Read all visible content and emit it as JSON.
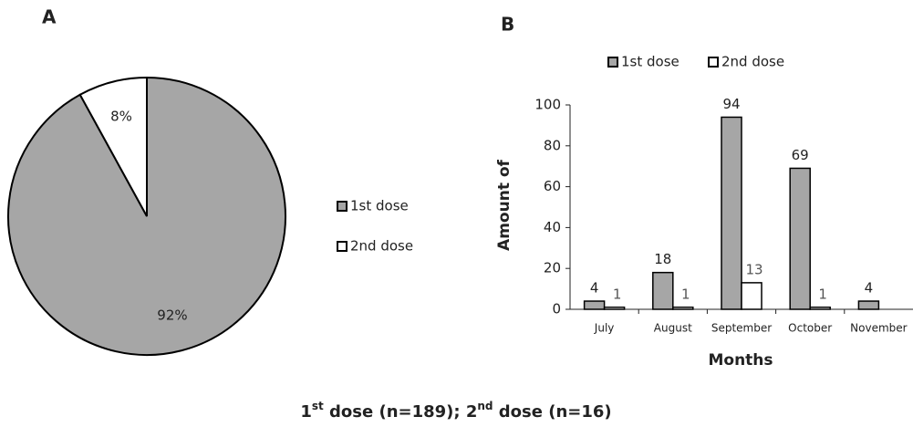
{
  "chart_data": [
    {
      "type": "pie",
      "panel_label": "A",
      "categories": [
        "1st dose",
        "2nd dose"
      ],
      "values": [
        92,
        8
      ],
      "value_labels": [
        "92%",
        "8%"
      ],
      "colors": [
        "#a6a6a6",
        "#ffffff"
      ],
      "legend": "right"
    },
    {
      "type": "bar",
      "panel_label": "B",
      "categories": [
        "July",
        "August",
        "September",
        "October",
        "November"
      ],
      "series": [
        {
          "name": "1st dose",
          "color": "#a6a6a6",
          "values": [
            4,
            18,
            94,
            69,
            4
          ]
        },
        {
          "name": "2nd dose",
          "color": "#ffffff",
          "values": [
            1,
            1,
            13,
            1,
            null
          ]
        }
      ],
      "ylabel": "Amount of",
      "xlabel": "Months",
      "ylim": [
        0,
        100
      ],
      "yticks": [
        0,
        20,
        40,
        60,
        80,
        100
      ],
      "legend": "top"
    }
  ],
  "caption": [
    {
      "base": "1",
      "sup": "st",
      "rest": " dose (n=189); "
    },
    {
      "base": "2",
      "sup": "nd",
      "rest": " dose (n=16)"
    }
  ]
}
